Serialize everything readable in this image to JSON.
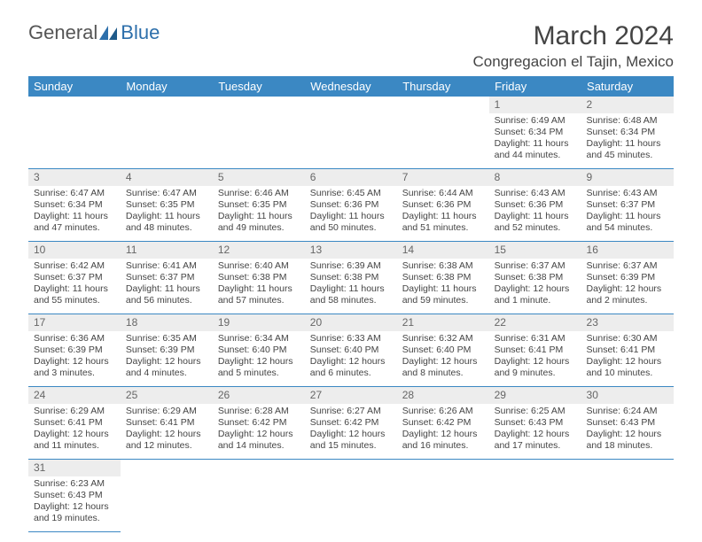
{
  "logo": {
    "text1": "General",
    "text2": "Blue"
  },
  "title": "March 2024",
  "location": "Congregacion el Tajin, Mexico",
  "day_headers": [
    "Sunday",
    "Monday",
    "Tuesday",
    "Wednesday",
    "Thursday",
    "Friday",
    "Saturday"
  ],
  "colors": {
    "header_bg": "#3b88c3",
    "header_text": "#ffffff",
    "daynum_bg": "#ededed",
    "border": "#3b88c3",
    "text": "#444444"
  },
  "weeks": [
    [
      null,
      null,
      null,
      null,
      null,
      {
        "n": "1",
        "sr": "Sunrise: 6:49 AM",
        "ss": "Sunset: 6:34 PM",
        "dl": "Daylight: 11 hours and 44 minutes."
      },
      {
        "n": "2",
        "sr": "Sunrise: 6:48 AM",
        "ss": "Sunset: 6:34 PM",
        "dl": "Daylight: 11 hours and 45 minutes."
      }
    ],
    [
      {
        "n": "3",
        "sr": "Sunrise: 6:47 AM",
        "ss": "Sunset: 6:34 PM",
        "dl": "Daylight: 11 hours and 47 minutes."
      },
      {
        "n": "4",
        "sr": "Sunrise: 6:47 AM",
        "ss": "Sunset: 6:35 PM",
        "dl": "Daylight: 11 hours and 48 minutes."
      },
      {
        "n": "5",
        "sr": "Sunrise: 6:46 AM",
        "ss": "Sunset: 6:35 PM",
        "dl": "Daylight: 11 hours and 49 minutes."
      },
      {
        "n": "6",
        "sr": "Sunrise: 6:45 AM",
        "ss": "Sunset: 6:36 PM",
        "dl": "Daylight: 11 hours and 50 minutes."
      },
      {
        "n": "7",
        "sr": "Sunrise: 6:44 AM",
        "ss": "Sunset: 6:36 PM",
        "dl": "Daylight: 11 hours and 51 minutes."
      },
      {
        "n": "8",
        "sr": "Sunrise: 6:43 AM",
        "ss": "Sunset: 6:36 PM",
        "dl": "Daylight: 11 hours and 52 minutes."
      },
      {
        "n": "9",
        "sr": "Sunrise: 6:43 AM",
        "ss": "Sunset: 6:37 PM",
        "dl": "Daylight: 11 hours and 54 minutes."
      }
    ],
    [
      {
        "n": "10",
        "sr": "Sunrise: 6:42 AM",
        "ss": "Sunset: 6:37 PM",
        "dl": "Daylight: 11 hours and 55 minutes."
      },
      {
        "n": "11",
        "sr": "Sunrise: 6:41 AM",
        "ss": "Sunset: 6:37 PM",
        "dl": "Daylight: 11 hours and 56 minutes."
      },
      {
        "n": "12",
        "sr": "Sunrise: 6:40 AM",
        "ss": "Sunset: 6:38 PM",
        "dl": "Daylight: 11 hours and 57 minutes."
      },
      {
        "n": "13",
        "sr": "Sunrise: 6:39 AM",
        "ss": "Sunset: 6:38 PM",
        "dl": "Daylight: 11 hours and 58 minutes."
      },
      {
        "n": "14",
        "sr": "Sunrise: 6:38 AM",
        "ss": "Sunset: 6:38 PM",
        "dl": "Daylight: 11 hours and 59 minutes."
      },
      {
        "n": "15",
        "sr": "Sunrise: 6:37 AM",
        "ss": "Sunset: 6:38 PM",
        "dl": "Daylight: 12 hours and 1 minute."
      },
      {
        "n": "16",
        "sr": "Sunrise: 6:37 AM",
        "ss": "Sunset: 6:39 PM",
        "dl": "Daylight: 12 hours and 2 minutes."
      }
    ],
    [
      {
        "n": "17",
        "sr": "Sunrise: 6:36 AM",
        "ss": "Sunset: 6:39 PM",
        "dl": "Daylight: 12 hours and 3 minutes."
      },
      {
        "n": "18",
        "sr": "Sunrise: 6:35 AM",
        "ss": "Sunset: 6:39 PM",
        "dl": "Daylight: 12 hours and 4 minutes."
      },
      {
        "n": "19",
        "sr": "Sunrise: 6:34 AM",
        "ss": "Sunset: 6:40 PM",
        "dl": "Daylight: 12 hours and 5 minutes."
      },
      {
        "n": "20",
        "sr": "Sunrise: 6:33 AM",
        "ss": "Sunset: 6:40 PM",
        "dl": "Daylight: 12 hours and 6 minutes."
      },
      {
        "n": "21",
        "sr": "Sunrise: 6:32 AM",
        "ss": "Sunset: 6:40 PM",
        "dl": "Daylight: 12 hours and 8 minutes."
      },
      {
        "n": "22",
        "sr": "Sunrise: 6:31 AM",
        "ss": "Sunset: 6:41 PM",
        "dl": "Daylight: 12 hours and 9 minutes."
      },
      {
        "n": "23",
        "sr": "Sunrise: 6:30 AM",
        "ss": "Sunset: 6:41 PM",
        "dl": "Daylight: 12 hours and 10 minutes."
      }
    ],
    [
      {
        "n": "24",
        "sr": "Sunrise: 6:29 AM",
        "ss": "Sunset: 6:41 PM",
        "dl": "Daylight: 12 hours and 11 minutes."
      },
      {
        "n": "25",
        "sr": "Sunrise: 6:29 AM",
        "ss": "Sunset: 6:41 PM",
        "dl": "Daylight: 12 hours and 12 minutes."
      },
      {
        "n": "26",
        "sr": "Sunrise: 6:28 AM",
        "ss": "Sunset: 6:42 PM",
        "dl": "Daylight: 12 hours and 14 minutes."
      },
      {
        "n": "27",
        "sr": "Sunrise: 6:27 AM",
        "ss": "Sunset: 6:42 PM",
        "dl": "Daylight: 12 hours and 15 minutes."
      },
      {
        "n": "28",
        "sr": "Sunrise: 6:26 AM",
        "ss": "Sunset: 6:42 PM",
        "dl": "Daylight: 12 hours and 16 minutes."
      },
      {
        "n": "29",
        "sr": "Sunrise: 6:25 AM",
        "ss": "Sunset: 6:43 PM",
        "dl": "Daylight: 12 hours and 17 minutes."
      },
      {
        "n": "30",
        "sr": "Sunrise: 6:24 AM",
        "ss": "Sunset: 6:43 PM",
        "dl": "Daylight: 12 hours and 18 minutes."
      }
    ],
    [
      {
        "n": "31",
        "sr": "Sunrise: 6:23 AM",
        "ss": "Sunset: 6:43 PM",
        "dl": "Daylight: 12 hours and 19 minutes."
      },
      null,
      null,
      null,
      null,
      null,
      null
    ]
  ]
}
